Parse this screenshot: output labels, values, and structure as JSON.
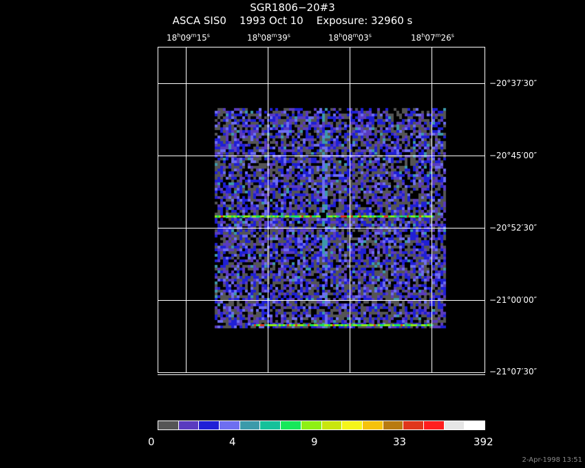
{
  "header": {
    "object": "SGR1806−20#3",
    "instrument_line": "ASCA SIS0    1993 Oct 10    Exposure: 32960 s"
  },
  "axes": {
    "ra": [
      {
        "h": "18",
        "m": "09",
        "s": "15"
      },
      {
        "h": "18",
        "m": "08",
        "s": "39"
      },
      {
        "h": "18",
        "m": "08",
        "s": "03"
      },
      {
        "h": "18",
        "m": "07",
        "s": "26"
      }
    ],
    "dec": [
      "−20°37′30″",
      "−20°45′00″",
      "−20°52′30″",
      "−21°00′00″",
      "−21°07′30″"
    ]
  },
  "colorbar": {
    "colors": [
      "#555555",
      "#5a3bbf",
      "#1f1fd6",
      "#6e6ef0",
      "#3c9aaa",
      "#15c19a",
      "#16e85a",
      "#8ef014",
      "#c9e60e",
      "#f5f51a",
      "#f5c20c",
      "#b87a10",
      "#e0361b",
      "#ff1e1e",
      "#e6e6e6",
      "#ffffff"
    ],
    "labels": [
      "0",
      "4",
      "9",
      "33",
      "392"
    ]
  },
  "timestamp": "2-Apr-1998 13:51"
}
